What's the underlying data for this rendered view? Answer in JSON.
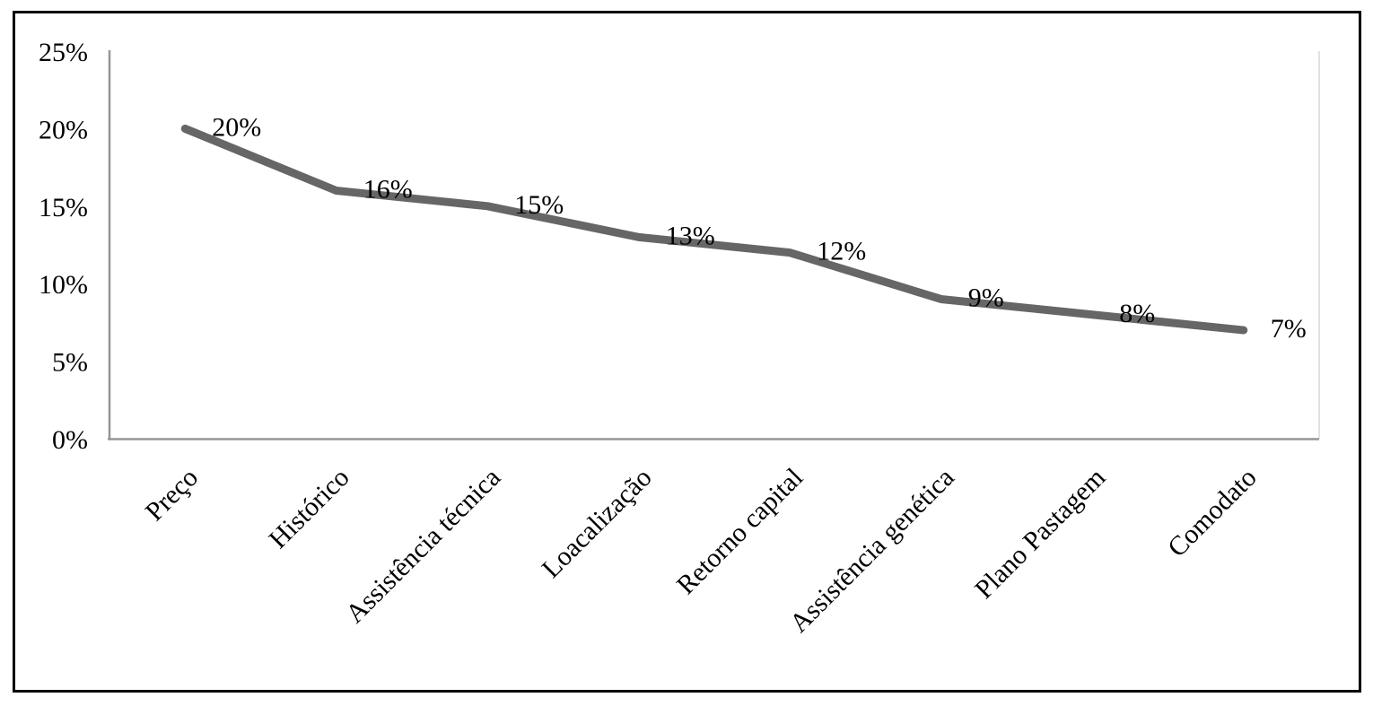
{
  "chart_data": {
    "type": "line",
    "title": "",
    "xlabel": "",
    "ylabel": "",
    "categories": [
      "Preço",
      "Histórico",
      "Assistência técnica",
      "Loacalização",
      "Retorno capital",
      "Assistência genética",
      "Plano Pastagem",
      "Comodato"
    ],
    "values": [
      20,
      16,
      15,
      13,
      12,
      9,
      8,
      7
    ],
    "data_labels": [
      "20%",
      "16%",
      "15%",
      "13%",
      "12%",
      "9%",
      "8%",
      "7%"
    ],
    "y_ticks": [
      {
        "value": 25,
        "label": "25%"
      },
      {
        "value": 20,
        "label": "20%"
      },
      {
        "value": 15,
        "label": "15%"
      },
      {
        "value": 10,
        "label": "10%"
      },
      {
        "value": 5,
        "label": "5%"
      },
      {
        "value": 0,
        "label": "0%"
      }
    ],
    "ylim": [
      0,
      25
    ],
    "grid": false,
    "legend_position": "none",
    "x_label_rotation_deg": 45,
    "colors": {
      "series_line": "#666666",
      "axis_line": "#969696",
      "plot_right_border": "#d9d9d9",
      "frame_border": "#000000",
      "text": "#000000",
      "background": "#ffffff"
    }
  }
}
